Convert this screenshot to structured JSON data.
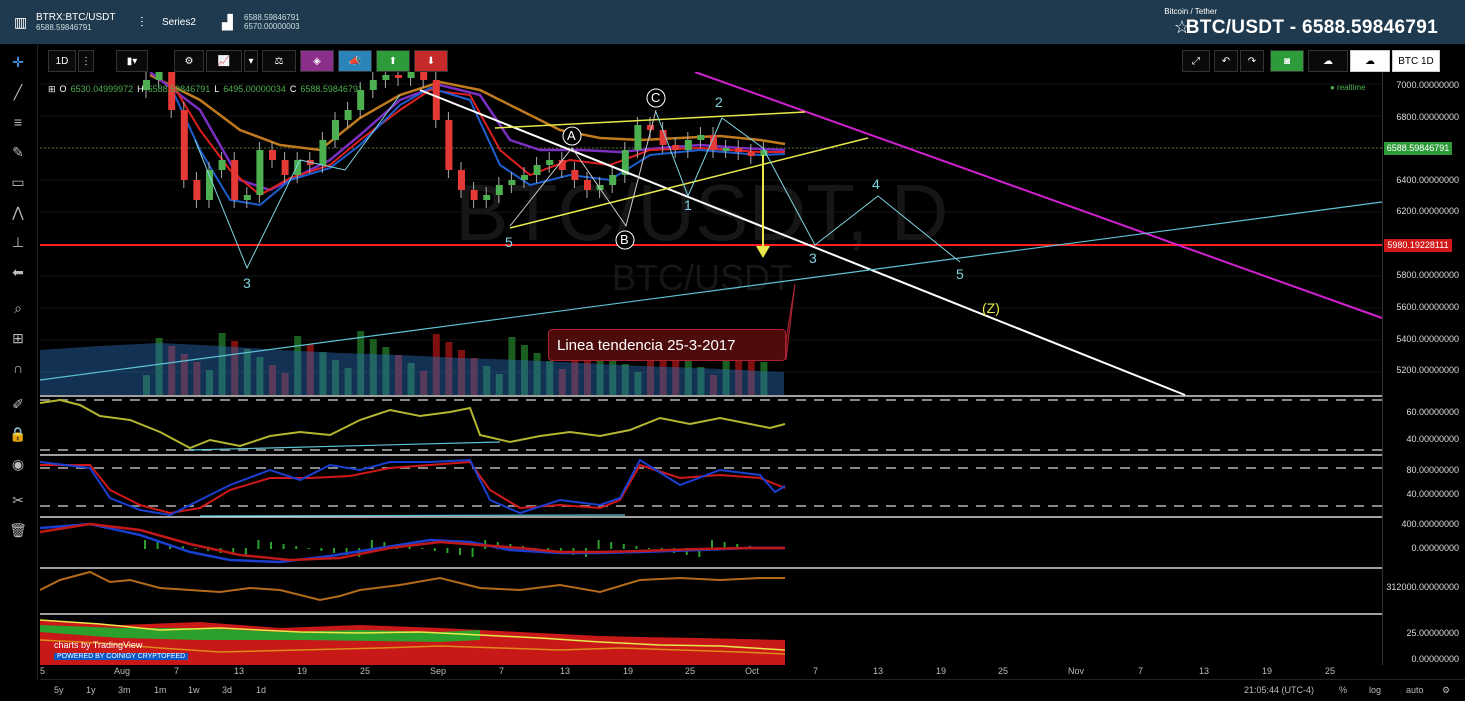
{
  "header": {
    "tab1": {
      "symbol": "BTRX:BTC/USDT",
      "price": "6588.59846791"
    },
    "tab2": {
      "label": "Series2"
    },
    "tab3": {
      "price_high": "6588.59846791",
      "price_low": "6570.00000003"
    },
    "title_sub": "Bitcoin / Tether",
    "title_main": "BTC/USDT - 6588.59846791"
  },
  "toolbar": {
    "interval": "1D",
    "right_interval": "BTC 1D"
  },
  "ohlc": {
    "o_label": "O",
    "o": "6530.04999972",
    "h_label": "H",
    "h": "6588.59846791",
    "l_label": "L",
    "l": "6495.00000034",
    "c_label": "C",
    "c": "6588.59846791"
  },
  "realtime": "● realtime",
  "axis": {
    "main_ticks": [
      "7000.00000000",
      "6800.00000000",
      "6600.00000000",
      "6400.00000000",
      "6200.00000000",
      "6000.00000000",
      "5800.00000000",
      "5600.00000000",
      "5400.00000000",
      "5200.00000000"
    ],
    "current_price": "6588.59846791",
    "support_price": "5980.19228111",
    "rsi_ticks": [
      "60.00000000",
      "40.00000000"
    ],
    "stoch_ticks": [
      "80.00000000",
      "40.00000000"
    ],
    "macd_ticks": [
      "400.00000000",
      "0.00000000"
    ],
    "obv_ticks": [
      "312000.00000000"
    ],
    "adx_ticks": [
      "25.00000000",
      "0.00000000"
    ]
  },
  "dates": [
    "5",
    "Aug",
    "7",
    "13",
    "19",
    "25",
    "Sep",
    "7",
    "13",
    "19",
    "25",
    "Oct",
    "7",
    "13",
    "19",
    "25",
    "Nov",
    "7",
    "13",
    "19",
    "25"
  ],
  "annotation": "Linea tendencia  25-3-2017",
  "wave_labels": {
    "a": "A",
    "b": "B",
    "c": "C",
    "n1": "1",
    "n2": "2",
    "n3": "3",
    "n4": "4",
    "n5": "5",
    "left3": "3",
    "left5": "5",
    "z": "(Z)"
  },
  "watermark": {
    "brand": "charts by TradingView",
    "powered": "POWERED BY COINIGY CRYPTOFEED"
  },
  "ranges": [
    "5y",
    "1y",
    "3m",
    "1m",
    "1w",
    "3d",
    "1d"
  ],
  "status": {
    "time": "21:05:44 (UTC-4)",
    "percent": "%",
    "log": "log",
    "auto": "auto"
  },
  "colors": {
    "bull": "#4caf50",
    "bear": "#e53935",
    "support": "#ff1f1f",
    "trend": "#ffffff",
    "magenta": "#d020d0",
    "cyan": "#7fd4e0",
    "yellow": "#e8e84a"
  }
}
